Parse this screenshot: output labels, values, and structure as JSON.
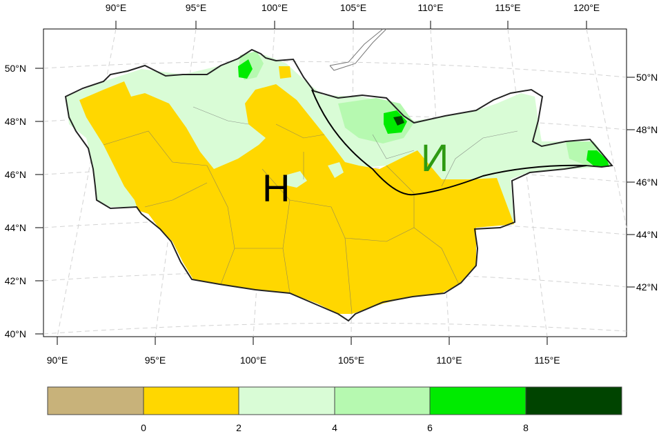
{
  "map": {
    "top_lon_labels": [
      "90°E",
      "95°E",
      "100°E",
      "105°E",
      "110°E",
      "115°E",
      "120°E"
    ],
    "bottom_lon_labels": [
      "90°E",
      "95°E",
      "100°E",
      "105°E",
      "110°E",
      "115°E"
    ],
    "left_lat_labels": [
      "50°N",
      "48°N",
      "46°N",
      "44°N",
      "42°N",
      "40°N"
    ],
    "right_lat_labels": [
      "50°N",
      "48°N",
      "46°N",
      "44°N",
      "42°N"
    ],
    "region_labels": [
      {
        "text": "Н",
        "color": "#000000"
      },
      {
        "text": "И",
        "color": "#2e9a12"
      }
    ]
  },
  "colorbar": {
    "tick_labels": [
      "0",
      "2",
      "4",
      "6",
      "8"
    ],
    "colors": [
      "#c8b27a",
      "#ffd700",
      "#d9fcd6",
      "#b6f9b0",
      "#00eb00",
      "#004400"
    ]
  }
}
